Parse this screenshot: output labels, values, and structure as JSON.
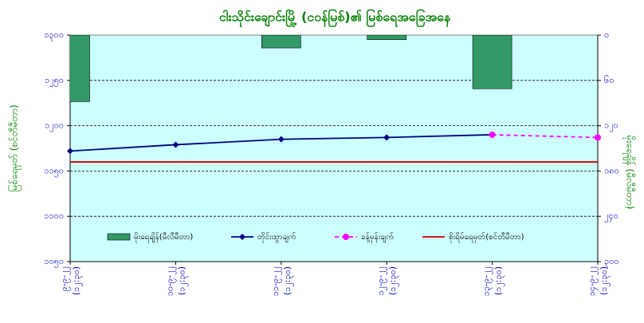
{
  "chart_data": {
    "type": "combo",
    "title": "ငါးသိုင်းချောင်းမြို့ (ငဝန်မြစ်)၏ မြစ်ရေအခြေအနေ",
    "y_label": "မြစ်ရေမှတ် (စင်တီမီတာ)",
    "y2_label": "မိုးရေချိန် (မီလီမီတာ)",
    "categories": [
      "၉-၉-၂၂",
      "၁၀-၉-၂၂",
      "၁၁-၉-၂၂",
      "၁၂-၉-၂၂",
      "၁၃-၉-၂၂",
      "၁၄-၉-၂၂"
    ],
    "times": [
      "(၁၂:၃၀)",
      "(၁၂:၃၀)",
      "(၁၂:၃၀)",
      "(၁၂:၃၀)",
      "(၁၂:၃၀)",
      "(၁၂:၃၀)"
    ],
    "ylim": [
      1050,
      1300
    ],
    "yticks": [
      {
        "value": 1050,
        "label": "၁၀၅၀"
      },
      {
        "value": 1100,
        "label": "၁၁၀၀"
      },
      {
        "value": 1150,
        "label": "၁၁၅၀"
      },
      {
        "value": 1200,
        "label": "၁၂၀၀"
      },
      {
        "value": 1250,
        "label": "၁၂၅၀"
      },
      {
        "value": 1300,
        "label": "၁၃၀၀"
      }
    ],
    "y2lim": [
      300,
      0
    ],
    "y2ticks": [
      {
        "value": 0,
        "label": "၀"
      },
      {
        "value": 60,
        "label": "၆၀"
      },
      {
        "value": 120,
        "label": "၁၂၀"
      },
      {
        "value": 180,
        "label": "၁၈၀"
      },
      {
        "value": 240,
        "label": "၂၄၀"
      },
      {
        "value": 300,
        "label": "၃၀၀"
      }
    ],
    "grid": true,
    "legend": "bottom",
    "series": [
      {
        "name": "မိုးရေချိန်(မီလီမီတာ)",
        "type": "bar",
        "axis": "y2",
        "color": "#339966",
        "values": [
          88,
          0,
          17,
          6,
          71,
          0
        ]
      },
      {
        "name": "တိုင်းထွာချက်",
        "type": "line",
        "marker": "diamond",
        "color": "#000080",
        "values": [
          1172,
          1179,
          1185,
          1187,
          1190,
          null
        ]
      },
      {
        "name": "ခန့်မှန်းချက်",
        "type": "line",
        "marker": "circle",
        "dashed": true,
        "color": "#ff00ff",
        "values": [
          null,
          null,
          null,
          null,
          1190,
          1187
        ]
      },
      {
        "name": "စိုးရိမ်ရေမှတ်(စင်တီမီတာ)",
        "type": "line",
        "color": "#cc0000",
        "values": [
          1160,
          1160,
          1160,
          1160,
          1160,
          1160
        ]
      }
    ]
  }
}
